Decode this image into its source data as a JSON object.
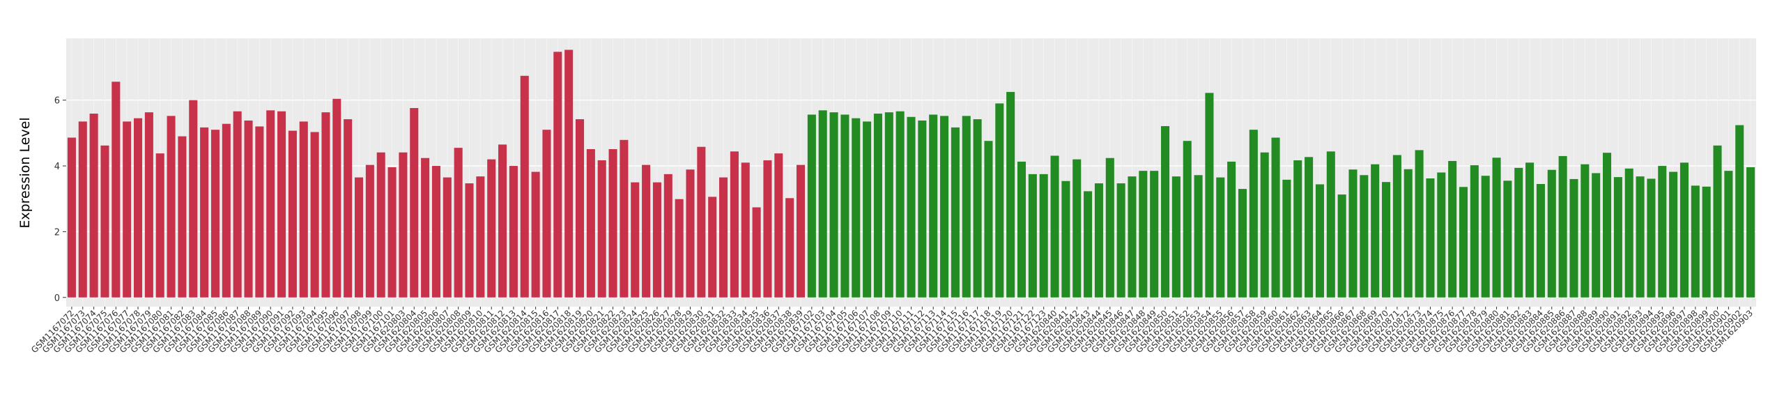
{
  "chart_data": {
    "type": "bar",
    "y_label": "Expression Level",
    "categories": [
      "GSM1167072",
      "GSM1167073",
      "GSM1167074",
      "GSM1167075",
      "GSM1167076",
      "GSM1167077",
      "GSM1167078",
      "GSM1167079",
      "GSM1167080",
      "GSM1167081",
      "GSM1167082",
      "GSM1167083",
      "GSM1167084",
      "GSM1167085",
      "GSM1167086",
      "GSM1167087",
      "GSM1167088",
      "GSM1167089",
      "GSM1167090",
      "GSM1167091",
      "GSM1167092",
      "GSM1167093",
      "GSM1167094",
      "GSM1167095",
      "GSM1167096",
      "GSM1167097",
      "GSM1167098",
      "GSM1167099",
      "GSM1167100",
      "GSM1167101",
      "GSM1620803",
      "GSM1620804",
      "GSM1620805",
      "GSM1620806",
      "GSM1620807",
      "GSM1620808",
      "GSM1620809",
      "GSM1620810",
      "GSM1620811",
      "GSM1620812",
      "GSM1620813",
      "GSM1620814",
      "GSM1620815",
      "GSM1620816",
      "GSM1620817",
      "GSM1620818",
      "GSM1620819",
      "GSM1620820",
      "GSM1620821",
      "GSM1620822",
      "GSM1620823",
      "GSM1620824",
      "GSM1620825",
      "GSM1620826",
      "GSM1620827",
      "GSM1620828",
      "GSM1620829",
      "GSM1620830",
      "GSM1620831",
      "GSM1620832",
      "GSM1620833",
      "GSM1620834",
      "GSM1620835",
      "GSM1620836",
      "GSM1620837",
      "GSM1620838",
      "GSM1620839",
      "GSM1167102",
      "GSM1167103",
      "GSM1167104",
      "GSM1167105",
      "GSM1167106",
      "GSM1167107",
      "GSM1167108",
      "GSM1167109",
      "GSM1167110",
      "GSM1167111",
      "GSM1167112",
      "GSM1167113",
      "GSM1167114",
      "GSM1167115",
      "GSM1167116",
      "GSM1167117",
      "GSM1167118",
      "GSM1167119",
      "GSM1167120",
      "GSM1167121",
      "GSM1167122",
      "GSM1167123",
      "GSM1620840",
      "GSM1620841",
      "GSM1620842",
      "GSM1620843",
      "GSM1620844",
      "GSM1620845",
      "GSM1620846",
      "GSM1620847",
      "GSM1620848",
      "GSM1620849",
      "GSM1620850",
      "GSM1620851",
      "GSM1620852",
      "GSM1620853",
      "GSM1620854",
      "GSM1620855",
      "GSM1620856",
      "GSM1620857",
      "GSM1620858",
      "GSM1620859",
      "GSM1620860",
      "GSM1620861",
      "GSM1620862",
      "GSM1620863",
      "GSM1620864",
      "GSM1620865",
      "GSM1620866",
      "GSM1620867",
      "GSM1620868",
      "GSM1620869",
      "GSM1620870",
      "GSM1620871",
      "GSM1620872",
      "GSM1620873",
      "GSM1620874",
      "GSM1620875",
      "GSM1620876",
      "GSM1620877",
      "GSM1620878",
      "GSM1620879",
      "GSM1620880",
      "GSM1620881",
      "GSM1620882",
      "GSM1620883",
      "GSM1620884",
      "GSM1620885",
      "GSM1620886",
      "GSM1620887",
      "GSM1620888",
      "GSM1620889",
      "GSM1620890",
      "GSM1620891",
      "GSM1620892",
      "GSM1620893",
      "GSM1620894",
      "GSM1620895",
      "GSM1620896",
      "GSM1620897",
      "GSM1620898",
      "GSM1620899",
      "GSM1620900",
      "GSM1620901",
      "GSM1620902",
      "GSM1620903"
    ],
    "series": [
      {
        "color": "#c8314a",
        "values": [
          4.86,
          5.35,
          5.59,
          4.62,
          6.56,
          5.35,
          5.45,
          5.63,
          4.38,
          5.52,
          4.9,
          6.0,
          5.17,
          5.1,
          5.28,
          5.66,
          5.38,
          5.2,
          5.69,
          5.66,
          5.07,
          5.35,
          5.03,
          5.63,
          6.04,
          5.42,
          3.65,
          4.03,
          4.41,
          3.96,
          4.41,
          5.76,
          4.24,
          4.0,
          3.65,
          4.55,
          3.47,
          3.68,
          4.2,
          4.65,
          4.0,
          6.74,
          3.82,
          5.1,
          7.47,
          7.53,
          5.42,
          4.51,
          4.17,
          4.51,
          4.79,
          3.5,
          4.03,
          3.5,
          3.75,
          2.99,
          3.89,
          4.58,
          3.06,
          3.65,
          4.44,
          4.1,
          2.74,
          4.17,
          4.38,
          3.02,
          4.03,
          null,
          null,
          null,
          null,
          null,
          null,
          null,
          null,
          null,
          null,
          null,
          null,
          null,
          null,
          null,
          null,
          null,
          null,
          null,
          null,
          null,
          null,
          null,
          null,
          null,
          null,
          null,
          null,
          null,
          null,
          null,
          null,
          null,
          null,
          null,
          null,
          null,
          null,
          null,
          null,
          null,
          null,
          null,
          null,
          null,
          null,
          null,
          null,
          null,
          null,
          null,
          null,
          null,
          null,
          null,
          null,
          null,
          null,
          null,
          null,
          null,
          null,
          null,
          null,
          null,
          null,
          null,
          null,
          null,
          null,
          null,
          null,
          null,
          null,
          null,
          null,
          null,
          null,
          null,
          null,
          null,
          null,
          null,
          null,
          null,
          null
        ]
      },
      {
        "color": "#228b22",
        "values": [
          null,
          null,
          null,
          null,
          null,
          null,
          null,
          null,
          null,
          null,
          null,
          null,
          null,
          null,
          null,
          null,
          null,
          null,
          null,
          null,
          null,
          null,
          null,
          null,
          null,
          null,
          null,
          null,
          null,
          null,
          null,
          null,
          null,
          null,
          null,
          null,
          null,
          null,
          null,
          null,
          null,
          null,
          null,
          null,
          null,
          null,
          null,
          null,
          null,
          null,
          null,
          null,
          null,
          null,
          null,
          null,
          null,
          null,
          null,
          null,
          null,
          null,
          null,
          null,
          null,
          null,
          null,
          5.56,
          5.69,
          5.63,
          5.56,
          5.45,
          5.35,
          5.59,
          5.63,
          5.66,
          5.49,
          5.38,
          5.56,
          5.52,
          5.17,
          5.52,
          5.42,
          4.76,
          5.9,
          6.25,
          4.13,
          3.75,
          3.75,
          4.31,
          3.54,
          4.2,
          3.23,
          3.47,
          4.24,
          3.47,
          3.68,
          3.85,
          3.85,
          5.21,
          3.68,
          4.76,
          3.72,
          6.22,
          3.65,
          4.13,
          3.3,
          5.1,
          4.41,
          4.86,
          3.58,
          4.17,
          4.27,
          3.44,
          4.44,
          3.13,
          3.89,
          3.72,
          4.05,
          3.51,
          4.33,
          3.9,
          4.48,
          3.62,
          3.8,
          4.15,
          3.36,
          4.02,
          3.7,
          4.25,
          3.55,
          3.94,
          4.1,
          3.45,
          3.88,
          4.3,
          3.6,
          4.05,
          3.78,
          4.4,
          3.66,
          3.92,
          3.68,
          3.61,
          4.0,
          3.82,
          4.1,
          3.4,
          3.37,
          4.62,
          3.85,
          5.24,
          3.96
        ]
      }
    ],
    "ylim": [
      -0.28,
      7.88
    ],
    "yticks": [
      0,
      2,
      4,
      6
    ],
    "grid": true
  }
}
